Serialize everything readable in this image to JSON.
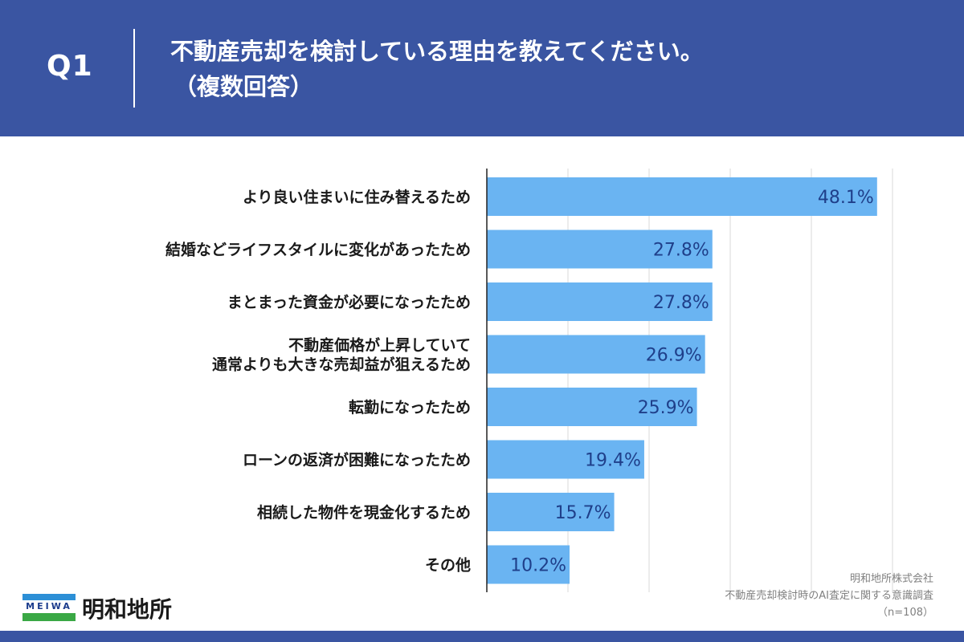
{
  "header": {
    "q_label": "Q1",
    "title_line1": "不動産売却を検討している理由を教えてください。",
    "title_line2": "（複数回答）"
  },
  "chart_data": {
    "type": "bar",
    "orientation": "horizontal",
    "categories": [
      [
        "より良い住まいに住み替えるため"
      ],
      [
        "結婚などライフスタイルに変化があったため"
      ],
      [
        "まとまった資金が必要になったため"
      ],
      [
        "不動産価格が上昇していて",
        "通常よりも大きな売却益が狙えるため"
      ],
      [
        "転勤になったため"
      ],
      [
        "ローンの返済が困難になったため"
      ],
      [
        "相続した物件を現金化するため"
      ],
      [
        "その他"
      ]
    ],
    "values": [
      48.1,
      27.8,
      27.8,
      26.9,
      25.9,
      19.4,
      15.7,
      10.2
    ],
    "value_labels": [
      "48.1%",
      "27.8%",
      "27.8%",
      "26.9%",
      "25.9%",
      "19.4%",
      "15.7%",
      "10.2%"
    ],
    "xlim": [
      0,
      50
    ],
    "grid": true,
    "bar_color": "#6ab4f2",
    "value_color": "#1f3f8a"
  },
  "source": {
    "line1": "明和地所株式会社",
    "line2": "不動産売却検討時のAI査定に関する意識調査",
    "line3": "（n=108）"
  },
  "logo": {
    "mark_text": "MEIWA",
    "name": "明和地所"
  },
  "colors": {
    "background": "#3a55a2",
    "panel": "#ffffff"
  }
}
